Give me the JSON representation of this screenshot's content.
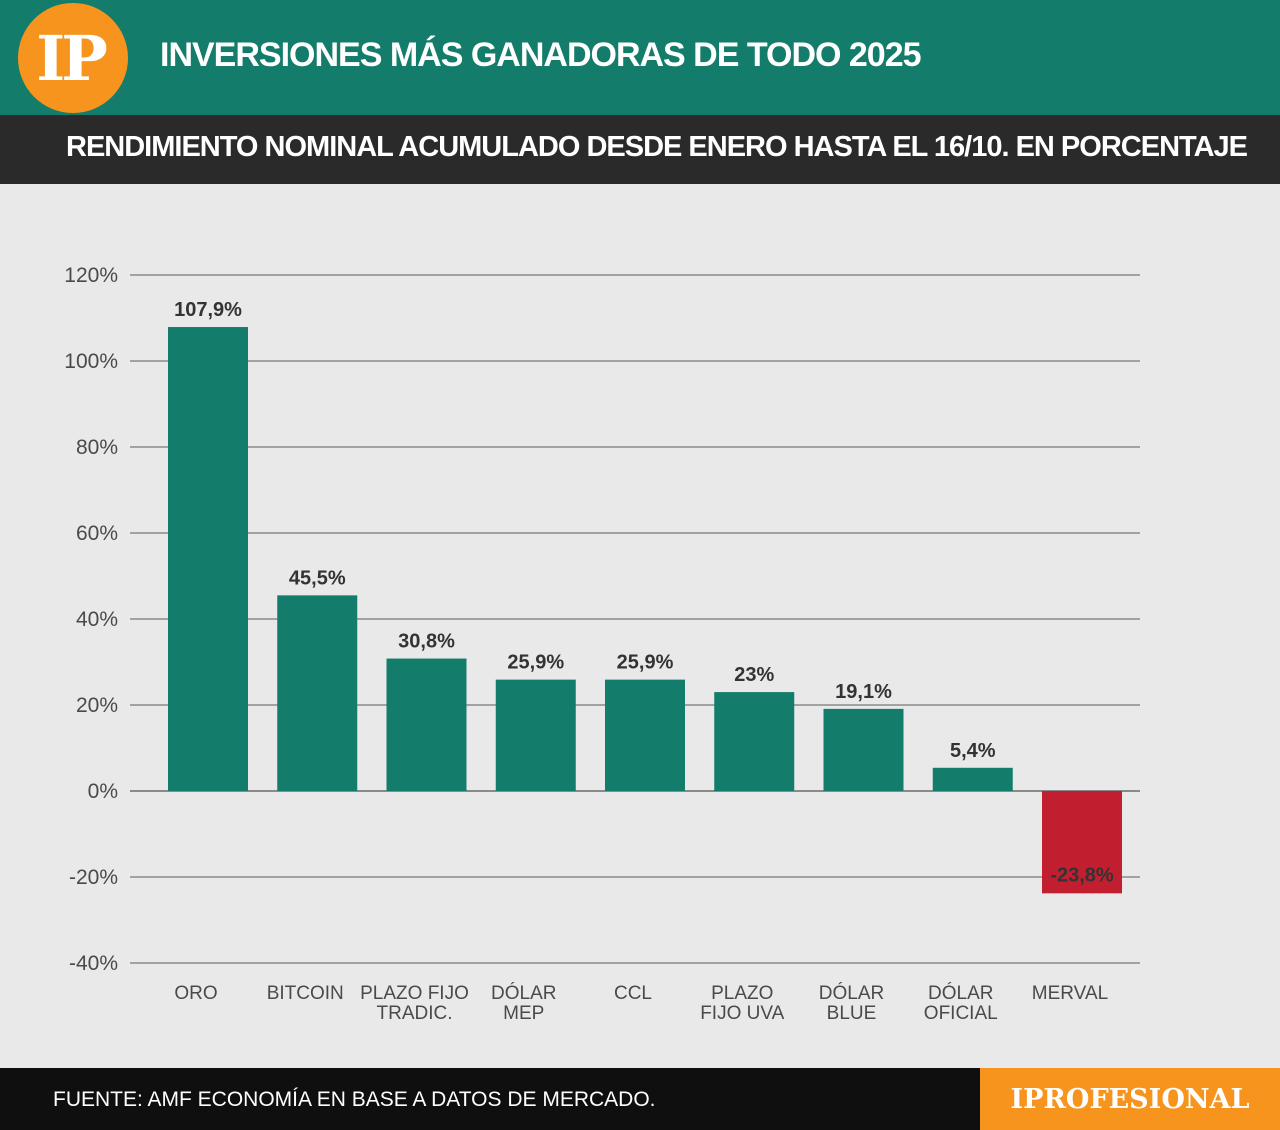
{
  "header": {
    "logo_text": "IP",
    "title": "INVERSIONES MÁS GANADORAS DE TODO 2025"
  },
  "subheader": {
    "text": "RENDIMIENTO NOMINAL ACUMULADO DESDE ENERO HASTA EL 16/10. EN PORCENTAJE"
  },
  "chart_data": {
    "type": "bar",
    "categories": [
      [
        "ORO"
      ],
      [
        "BITCOIN"
      ],
      [
        "PLAZO FIJO",
        "TRADIC."
      ],
      [
        "DÓLAR",
        "MEP"
      ],
      [
        "CCL"
      ],
      [
        "PLAZO",
        "FIJO UVA"
      ],
      [
        "DÓLAR",
        "BLUE"
      ],
      [
        "DÓLAR",
        "OFICIAL"
      ],
      [
        "MERVAL"
      ]
    ],
    "values": [
      107.9,
      45.5,
      30.8,
      25.9,
      25.9,
      23,
      19.1,
      5.4,
      -23.8
    ],
    "value_labels": [
      "107,9%",
      "45,5%",
      "30,8%",
      "25,9%",
      "25,9%",
      "23%",
      "19,1%",
      "5,4%",
      "-23,8%"
    ],
    "ylim": [
      -40,
      120
    ],
    "yticks": [
      120,
      100,
      80,
      60,
      40,
      20,
      0,
      -20,
      -40
    ],
    "ytick_labels": [
      "120%",
      "100%",
      "80%",
      "60%",
      "40%",
      "20%",
      "0%",
      "-20%",
      "-40%"
    ],
    "grid": true,
    "colors": {
      "positive": "#137c6a",
      "negative": "#c11f2f",
      "grid": "#8a8a8a"
    }
  },
  "footer": {
    "source": "FUENTE: AMF ECONOMÍA EN BASE A DATOS DE MERCADO.",
    "brand": "IPROFESIONAL"
  }
}
